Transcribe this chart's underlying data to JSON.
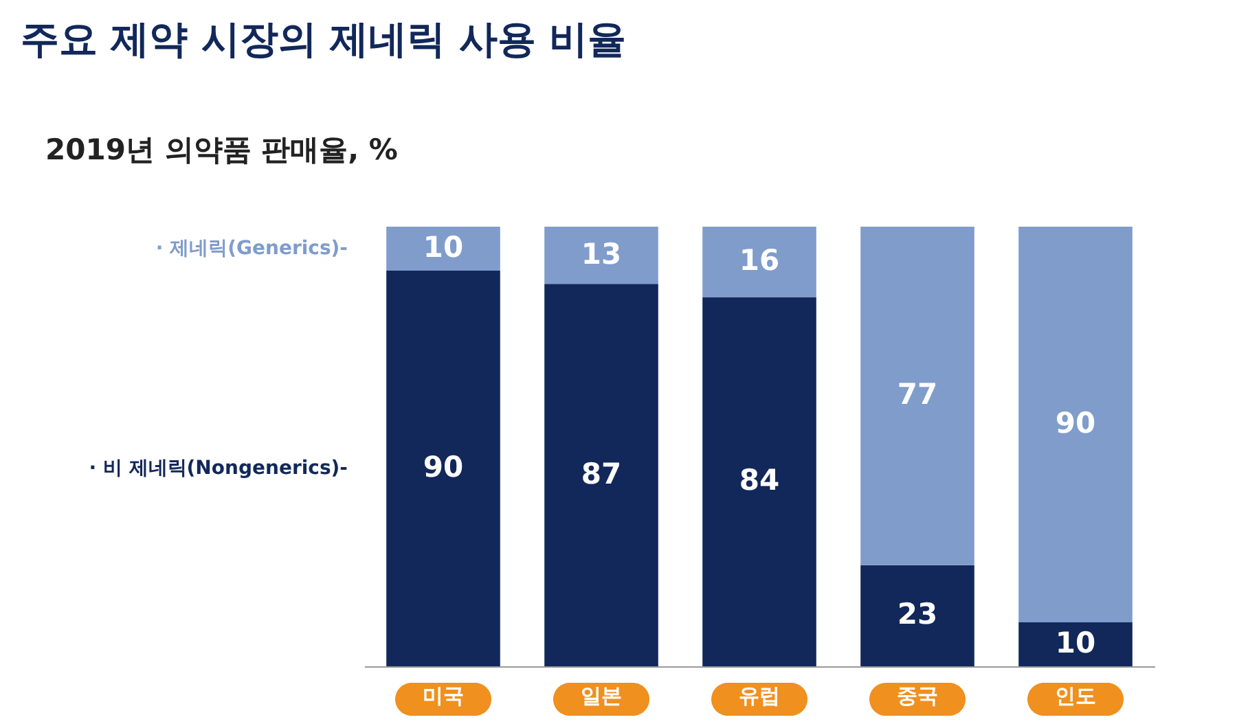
{
  "chart_data": {
    "type": "bar",
    "title": "주요 제약 시장의 제네릭 사용 비율",
    "subtitle": "2019년 의약품 판매율, %",
    "categories": [
      "미국",
      "일본",
      "유럽",
      "중국",
      "인도"
    ],
    "series": [
      {
        "name": "· 비 제네릭(Nongenerics)-",
        "color": "#12285a",
        "values": [
          90,
          87,
          84,
          23,
          10
        ]
      },
      {
        "name": "· 제네릭(Generics)-",
        "color": "#7f9ccb",
        "values": [
          10,
          13,
          16,
          77,
          90
        ]
      }
    ],
    "stacked": true,
    "data_labels": true,
    "ylim": [
      0,
      100
    ],
    "grid": false
  }
}
